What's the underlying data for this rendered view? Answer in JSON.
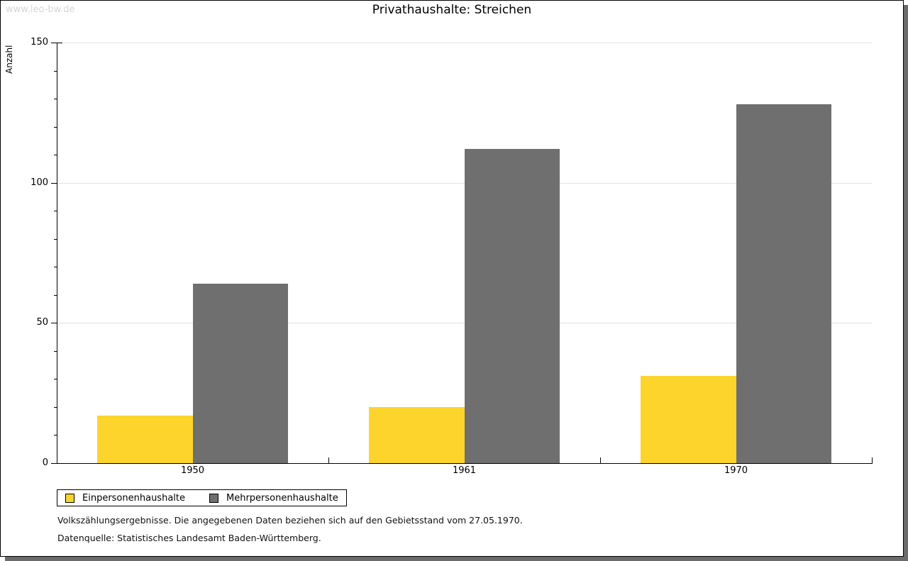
{
  "watermark": "www.leo-bw.de",
  "chart_data": {
    "type": "bar",
    "title": "Privathaushalte: Streichen",
    "ylabel": "Anzahl",
    "xlabel": "",
    "categories": [
      "1950",
      "1961",
      "1970"
    ],
    "series": [
      {
        "name": "Einpersonenhaushalte",
        "color": "#fcd42c",
        "values": [
          17,
          20,
          31
        ]
      },
      {
        "name": "Mehrpersonenhaushalte",
        "color": "#6f6f6f",
        "values": [
          64,
          112,
          128
        ]
      }
    ],
    "ylim": [
      0,
      150
    ],
    "ytick_step": 50,
    "minor_tick_step": 10,
    "grid": "horizontal",
    "legend_position": "bottom-left"
  },
  "footnotes": [
    "Volkszählungsergebnisse. Die angegebenen Daten beziehen sich auf den Gebietsstand vom 27.05.1970.",
    "Datenquelle: Statistisches Landesamt Baden-Württemberg."
  ]
}
